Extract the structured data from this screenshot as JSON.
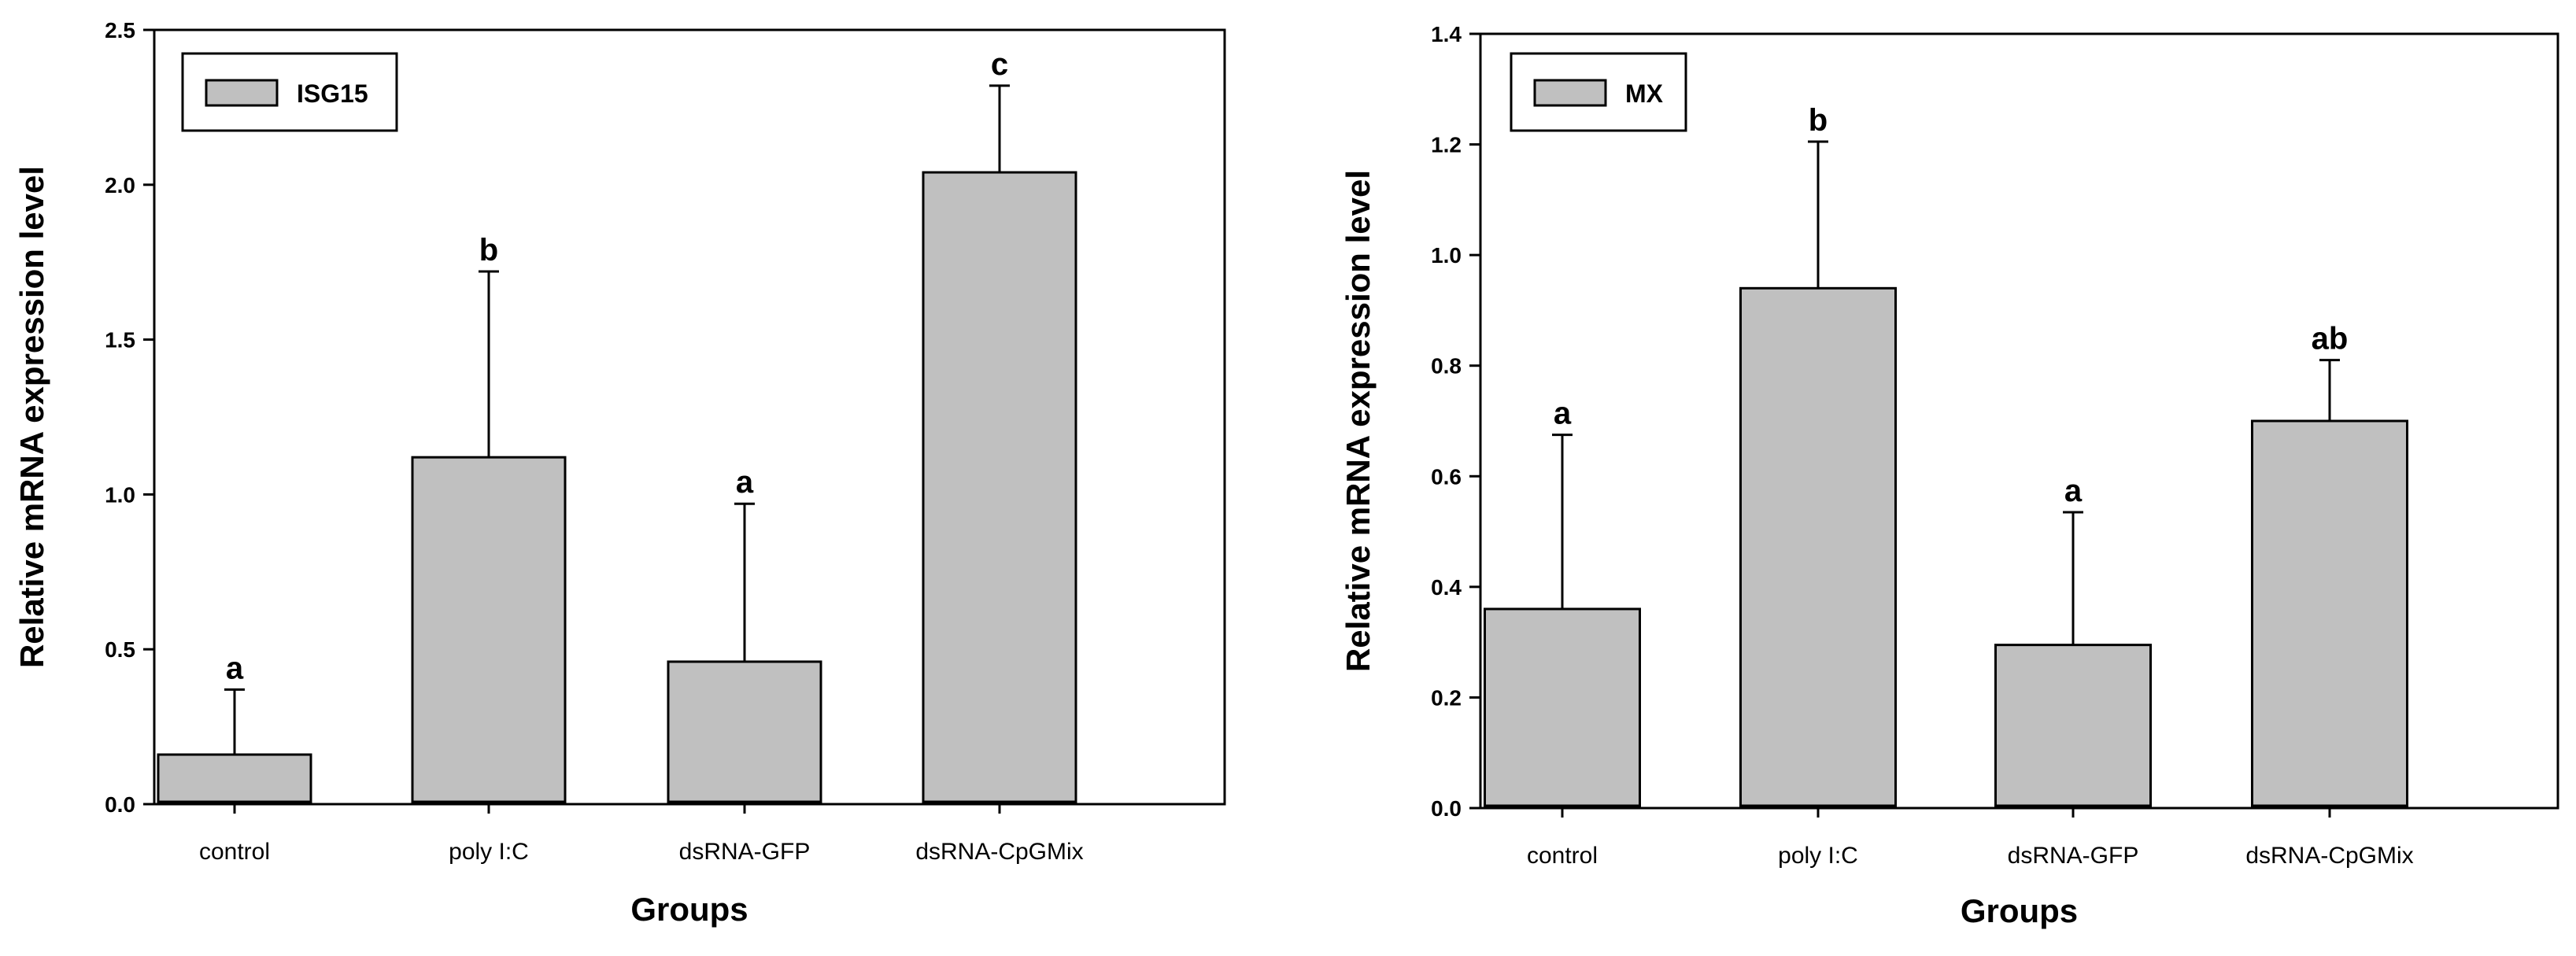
{
  "chart_data": [
    {
      "type": "bar",
      "categories": [
        "control",
        "poly I:C",
        "dsRNA-GFP",
        "dsRNA-CpGMix"
      ],
      "series": [
        {
          "name": "ISG15",
          "values": [
            0.16,
            1.12,
            0.46,
            2.04
          ],
          "error_upper": [
            0.37,
            1.72,
            0.97,
            2.32
          ],
          "significance": [
            "a",
            "b",
            "a",
            "c"
          ]
        }
      ],
      "title": "",
      "xlabel": "Groups",
      "ylabel": "Relative mRNA expression level",
      "ylim": [
        0,
        2.5
      ],
      "yticks": [
        0,
        0.5,
        1.0,
        1.5,
        2.0,
        2.5
      ],
      "ytick_labels": [
        "0.0",
        "0.5",
        "1.0",
        "1.5",
        "2.0",
        "2.5"
      ],
      "legend_position": "top-left",
      "grid": false,
      "bar_color": "#c0c0c0"
    },
    {
      "type": "bar",
      "categories": [
        "control",
        "poly I:C",
        "dsRNA-GFP",
        "dsRNA-CpGMix"
      ],
      "series": [
        {
          "name": "MX",
          "values": [
            0.36,
            0.94,
            0.295,
            0.7
          ],
          "error_upper": [
            0.675,
            1.205,
            0.535,
            0.81
          ],
          "significance": [
            "a",
            "b",
            "a",
            "ab"
          ]
        }
      ],
      "title": "",
      "xlabel": "Groups",
      "ylabel": "Relative mRNA expression level",
      "ylim": [
        0,
        1.4
      ],
      "yticks": [
        0,
        0.2,
        0.4,
        0.6,
        0.8,
        1.0,
        1.2,
        1.4
      ],
      "ytick_labels": [
        "0.0",
        "0.2",
        "0.4",
        "0.6",
        "0.8",
        "1.0",
        "1.2",
        "1.4"
      ],
      "legend_position": "top-left",
      "grid": false,
      "bar_color": "#c0c0c0"
    }
  ]
}
